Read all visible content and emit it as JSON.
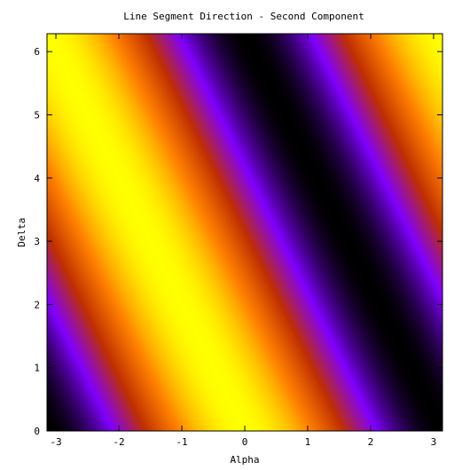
{
  "chart_data": {
    "type": "heatmap",
    "title": "Line Segment Direction - Second Component",
    "xlabel": "Alpha",
    "ylabel": "Delta",
    "xlim": [
      -3.14159,
      3.14159
    ],
    "ylim": [
      0,
      6.28318
    ],
    "x_ticks": [
      {
        "value": -3,
        "label": "-3"
      },
      {
        "value": -2,
        "label": "-2"
      },
      {
        "value": -1,
        "label": "-1"
      },
      {
        "value": 0,
        "label": "0"
      },
      {
        "value": 1,
        "label": "1"
      },
      {
        "value": 2,
        "label": "2"
      },
      {
        "value": 3,
        "label": "3"
      }
    ],
    "y_ticks": [
      {
        "value": 0,
        "label": "0"
      },
      {
        "value": 1,
        "label": "1"
      },
      {
        "value": 2,
        "label": "2"
      },
      {
        "value": 3,
        "label": "3"
      },
      {
        "value": 4,
        "label": "4"
      },
      {
        "value": 5,
        "label": "5"
      },
      {
        "value": 6,
        "label": "6"
      }
    ],
    "colormap": [
      "#000000",
      "#8000ff",
      "#c03000",
      "#ff8000",
      "#ffff00"
    ],
    "field": {
      "description_formula": "value = cos(alpha + delta/2)",
      "grid_x": [
        -3.14159,
        -2.35619,
        -1.5708,
        -0.7854,
        0,
        0.7854,
        1.5708,
        2.35619,
        3.14159
      ],
      "grid_y": [
        0,
        1.5708,
        3.14159,
        4.71239,
        6.28318
      ],
      "value_range": [
        -1,
        1
      ]
    },
    "grid": false,
    "legend": "none"
  }
}
